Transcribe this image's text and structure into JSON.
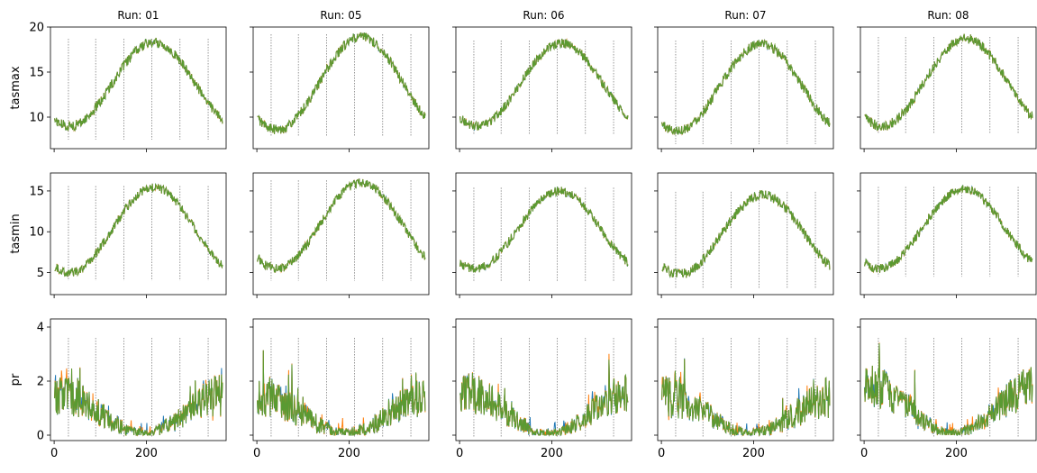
{
  "figure": {
    "columns": [
      "Run: 01",
      "Run: 05",
      "Run: 06",
      "Run: 07",
      "Run: 08"
    ],
    "rows": [
      "tasmax",
      "tasmin",
      "pr"
    ],
    "series_colors": [
      "#1f77b4",
      "#ff7f0e",
      "#599a32"
    ],
    "month_marker_days": [
      31,
      90,
      151,
      212,
      273,
      334
    ],
    "month_marker_style": "dotted, gray"
  },
  "chart_data": {
    "type": "line",
    "layout": "grid 3 rows x 5 columns, shared x axis, shared y axis per row",
    "x": {
      "range": [
        0,
        365
      ],
      "ticks": [
        0,
        200
      ],
      "tick_labels": [
        "0",
        "200"
      ],
      "xlim": [
        -8,
        373
      ]
    },
    "panels": [
      {
        "row": "tasmax",
        "ylabel": "tasmax",
        "ylim": [
          6.5,
          20
        ],
        "yticks": [
          10,
          15,
          20
        ],
        "runs": {
          "Run: 01": {
            "base": 9.0,
            "peak": 18.3,
            "peak_day": 215,
            "noise": 0.55,
            "line_min": 7.5,
            "line_max": 18.7
          },
          "Run: 05": {
            "base": 8.6,
            "peak": 18.9,
            "peak_day": 225,
            "noise": 0.55,
            "line_min": 7.8,
            "line_max": 19.2
          },
          "Run: 06": {
            "base": 9.0,
            "peak": 18.2,
            "peak_day": 220,
            "noise": 0.5,
            "line_min": 8.0,
            "line_max": 18.5
          },
          "Run: 07": {
            "base": 8.5,
            "peak": 18.1,
            "peak_day": 215,
            "noise": 0.55,
            "line_min": 7.0,
            "line_max": 18.5
          },
          "Run: 08": {
            "base": 9.0,
            "peak": 18.7,
            "peak_day": 220,
            "noise": 0.55,
            "line_min": 8.2,
            "line_max": 18.9
          }
        }
      },
      {
        "row": "tasmin",
        "ylabel": "tasmin",
        "ylim": [
          2.3,
          17.2
        ],
        "yticks": [
          5,
          10,
          15
        ],
        "runs": {
          "Run: 01": {
            "base": 5.0,
            "peak": 15.4,
            "peak_day": 215,
            "noise": 0.55,
            "line_min": 4.0,
            "line_max": 15.6
          },
          "Run: 05": {
            "base": 5.5,
            "peak": 16.0,
            "peak_day": 225,
            "noise": 0.55,
            "line_min": 4.0,
            "line_max": 16.3
          },
          "Run: 06": {
            "base": 5.5,
            "peak": 15.0,
            "peak_day": 215,
            "noise": 0.55,
            "line_min": 3.9,
            "line_max": 15.4
          },
          "Run: 07": {
            "base": 4.8,
            "peak": 14.5,
            "peak_day": 220,
            "noise": 0.6,
            "line_min": 3.0,
            "line_max": 14.9
          },
          "Run: 08": {
            "base": 5.5,
            "peak": 15.2,
            "peak_day": 215,
            "noise": 0.55,
            "line_min": 4.5,
            "line_max": 15.5
          }
        }
      },
      {
        "row": "pr",
        "ylabel": "pr",
        "ylim": [
          -0.2,
          4.3
        ],
        "yticks": [
          0,
          2,
          4
        ],
        "runs": {
          "Run: 01": {
            "winter": 1.5,
            "summer": 0.07,
            "noise": 0.6,
            "line_max": 3.6
          },
          "Run: 05": {
            "winter": 1.4,
            "summer": 0.08,
            "noise": 0.6,
            "line_max": 3.5
          },
          "Run: 06": {
            "winter": 1.6,
            "summer": 0.05,
            "noise": 0.6,
            "line_max": 3.5
          },
          "Run: 07": {
            "winter": 1.4,
            "summer": 0.05,
            "noise": 0.6,
            "line_max": 4.1
          },
          "Run: 08": {
            "winter": 1.8,
            "summer": 0.08,
            "noise": 0.6,
            "line_max": 3.9
          }
        }
      }
    ]
  }
}
